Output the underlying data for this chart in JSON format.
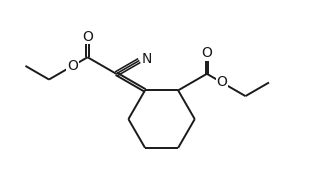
{
  "bg_color": "#ffffff",
  "line_color": "#1a1a1a",
  "line_width": 1.4,
  "font_size": 10,
  "figsize": [
    3.2,
    1.94
  ],
  "dpi": 100,
  "xlim": [
    0,
    10
  ],
  "ylim": [
    0,
    6.1
  ]
}
